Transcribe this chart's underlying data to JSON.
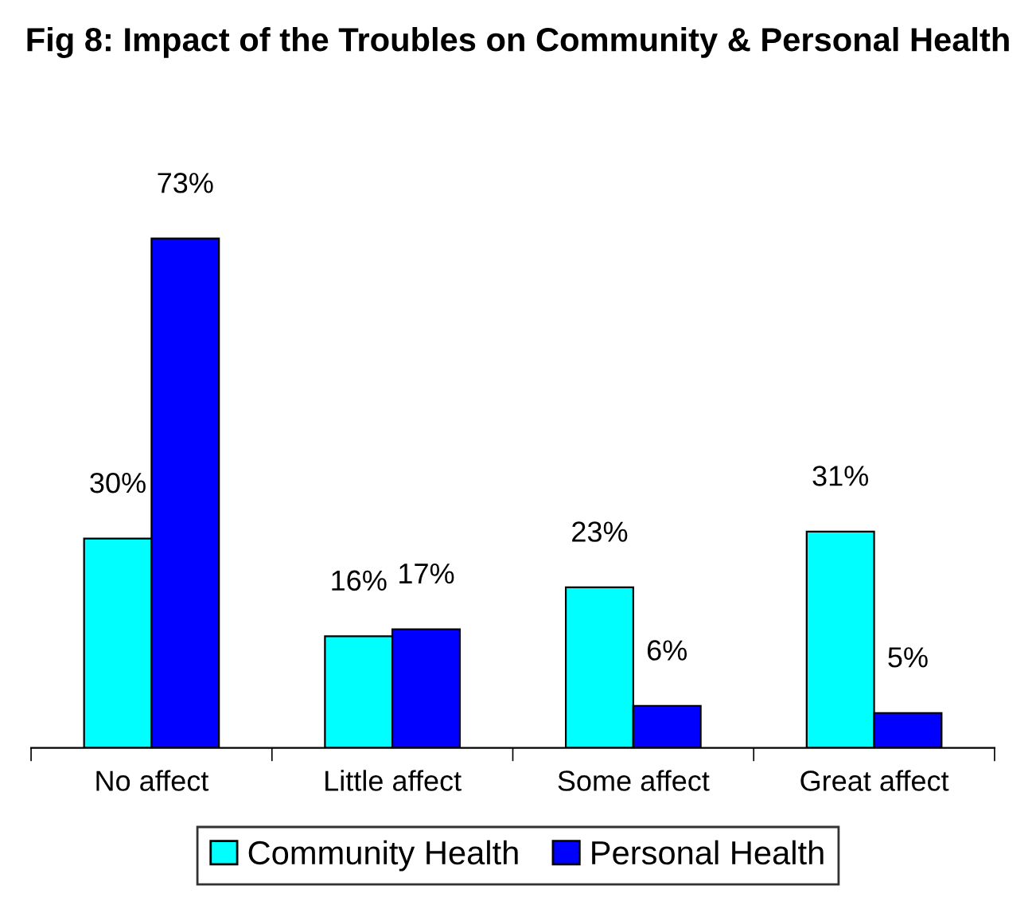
{
  "chart_data": {
    "type": "bar",
    "title": "Fig 8: Impact of the Troubles on Community & Personal Health",
    "categories": [
      "No affect",
      "Little affect",
      "Some affect",
      "Great affect"
    ],
    "series": [
      {
        "name": "Community Health",
        "color": "#00ffff",
        "values": [
          30,
          16,
          23,
          31
        ],
        "value_labels": [
          "30%",
          "16%",
          "23%",
          "31%"
        ]
      },
      {
        "name": "Personal Health",
        "color": "#0000ff",
        "values": [
          73,
          17,
          6,
          5
        ],
        "value_labels": [
          "73%",
          "17%",
          "6%",
          "5%"
        ]
      }
    ],
    "tick_labels": "x",
    "legend": "bottom",
    "grid": false
  }
}
